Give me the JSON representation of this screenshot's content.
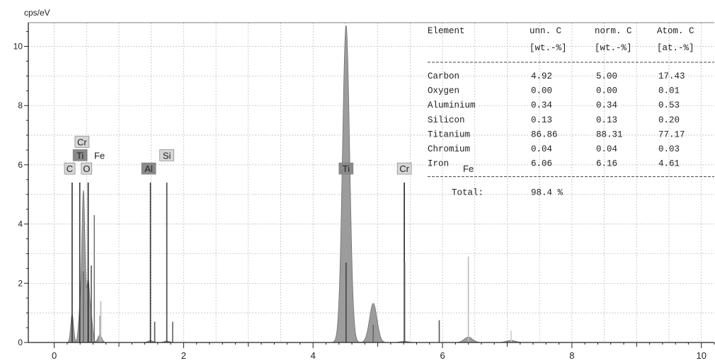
{
  "chart_data": {
    "type": "line",
    "ylabel": "cps/eV",
    "xlim": [
      -0.4,
      10.2
    ],
    "ylim": [
      0,
      10.8
    ],
    "xticks": [
      0,
      2,
      4,
      6,
      8,
      10
    ],
    "xtick_labels": [
      "0",
      "2",
      "4",
      "6",
      "8",
      "10"
    ],
    "yticks": [
      0,
      2,
      4,
      6,
      8,
      10
    ],
    "ytick_labels": [
      "0",
      "2",
      "4",
      "6",
      "8",
      "10"
    ],
    "grid": true,
    "spectrum_peaks": [
      {
        "label": "C",
        "energy": 0.277,
        "height": 0.95,
        "sigma": 0.022
      },
      {
        "label": "Ti Ll",
        "energy": 0.395,
        "height": 0.9,
        "sigma": 0.022
      },
      {
        "label": "Ti La",
        "energy": 0.452,
        "height": 5.1,
        "sigma": 0.025
      },
      {
        "label": "O",
        "energy": 0.525,
        "height": 2.0,
        "sigma": 0.022
      },
      {
        "label": "Cr L",
        "energy": 0.573,
        "height": 0.8,
        "sigma": 0.022
      },
      {
        "label": "Fe L",
        "energy": 0.705,
        "height": 0.25,
        "sigma": 0.03
      },
      {
        "label": "Al",
        "energy": 1.487,
        "height": 0.06,
        "sigma": 0.04
      },
      {
        "label": "Si",
        "energy": 1.74,
        "height": 0.05,
        "sigma": 0.04
      },
      {
        "label": "Ti Ka",
        "energy": 4.51,
        "height": 10.7,
        "sigma": 0.055
      },
      {
        "label": "Ti Kb",
        "energy": 4.93,
        "height": 1.32,
        "sigma": 0.058
      },
      {
        "label": "Cr Ka",
        "energy": 5.41,
        "height": 0.04,
        "sigma": 0.06
      },
      {
        "label": "Fe Ka",
        "energy": 6.4,
        "height": 0.18,
        "sigma": 0.065
      },
      {
        "label": "Fe Kb",
        "energy": 7.06,
        "height": 0.07,
        "sigma": 0.07
      }
    ],
    "marker_lines": [
      {
        "energy": 0.277,
        "height": 5.4,
        "color": "#333333"
      },
      {
        "energy": 0.395,
        "height": 5.4,
        "color": "#333333"
      },
      {
        "energy": 0.452,
        "height": 2.4,
        "color": "#666666"
      },
      {
        "energy": 0.525,
        "height": 5.4,
        "color": "#222222"
      },
      {
        "energy": 0.573,
        "height": 2.6,
        "color": "#555555"
      },
      {
        "energy": 0.62,
        "height": 4.3,
        "color": "#777777"
      },
      {
        "energy": 0.705,
        "height": 0.9,
        "color": "#aaaaaa"
      },
      {
        "energy": 0.72,
        "height": 1.4,
        "color": "#bbbbbb"
      },
      {
        "energy": 1.487,
        "height": 5.4,
        "color": "#333333"
      },
      {
        "energy": 1.553,
        "height": 0.7,
        "color": "#555555"
      },
      {
        "energy": 1.74,
        "height": 5.4,
        "color": "#444444"
      },
      {
        "energy": 1.83,
        "height": 0.7,
        "color": "#666666"
      },
      {
        "energy": 4.51,
        "height": 2.7,
        "color": "#444444"
      },
      {
        "energy": 4.93,
        "height": 0.6,
        "color": "#666666"
      },
      {
        "energy": 5.41,
        "height": 5.4,
        "color": "#222222"
      },
      {
        "energy": 5.415,
        "height": 2.7,
        "color": "#555555"
      },
      {
        "energy": 5.95,
        "height": 0.75,
        "color": "#555555"
      },
      {
        "energy": 6.4,
        "height": 2.9,
        "color": "#bbbbbb"
      },
      {
        "energy": 7.06,
        "height": 0.4,
        "color": "#cccccc"
      }
    ],
    "element_labels": [
      {
        "text": "C",
        "energy": 0.24,
        "y": 5.85,
        "boxed": true
      },
      {
        "text": "O",
        "energy": 0.5,
        "y": 5.85,
        "boxed": true
      },
      {
        "text": "Ti",
        "energy": 0.4,
        "y": 6.3,
        "boxed": true
      },
      {
        "text": "Fe",
        "energy": 0.7,
        "y": 6.3,
        "boxed": false
      },
      {
        "text": "Cr",
        "energy": 0.43,
        "y": 6.75,
        "boxed": true
      },
      {
        "text": "Al",
        "energy": 1.46,
        "y": 5.85,
        "boxed": true
      },
      {
        "text": "Si",
        "energy": 1.74,
        "y": 6.3,
        "boxed": true
      },
      {
        "text": "Ti",
        "energy": 4.51,
        "y": 5.85,
        "boxed": true
      },
      {
        "text": "Cr",
        "energy": 5.41,
        "y": 5.85,
        "boxed": true
      },
      {
        "text": "Fe",
        "energy": 6.4,
        "y": 5.85,
        "boxed": false
      }
    ],
    "quant_table": {
      "headers": [
        [
          "Element",
          ""
        ],
        [
          "unn. C",
          "[wt.-%]"
        ],
        [
          "norm. C",
          "[wt.-%]"
        ],
        [
          "Atom. C",
          "[at.-%]"
        ]
      ],
      "rows": [
        [
          "Carbon",
          "4.92",
          "5.00",
          "17.43"
        ],
        [
          "Oxygen",
          "0.00",
          "0.00",
          "0.01"
        ],
        [
          "Aluminium",
          "0.34",
          "0.34",
          "0.53"
        ],
        [
          "Silicon",
          "0.13",
          "0.13",
          "0.20"
        ],
        [
          "Titanium",
          "86.86",
          "88.31",
          "77.17"
        ],
        [
          "Chromium",
          "0.04",
          "0.04",
          "0.03"
        ],
        [
          "Iron",
          "6.06",
          "6.16",
          "4.61"
        ]
      ],
      "total_label": "Total:",
      "total_value": "98.4 %"
    },
    "colors": {
      "fill": "#9c9c9c",
      "axis": "#222222",
      "grid": "#b8b8b8",
      "label_box": "#d6d6d6",
      "label_box_dark": "#8a8a8a"
    }
  }
}
